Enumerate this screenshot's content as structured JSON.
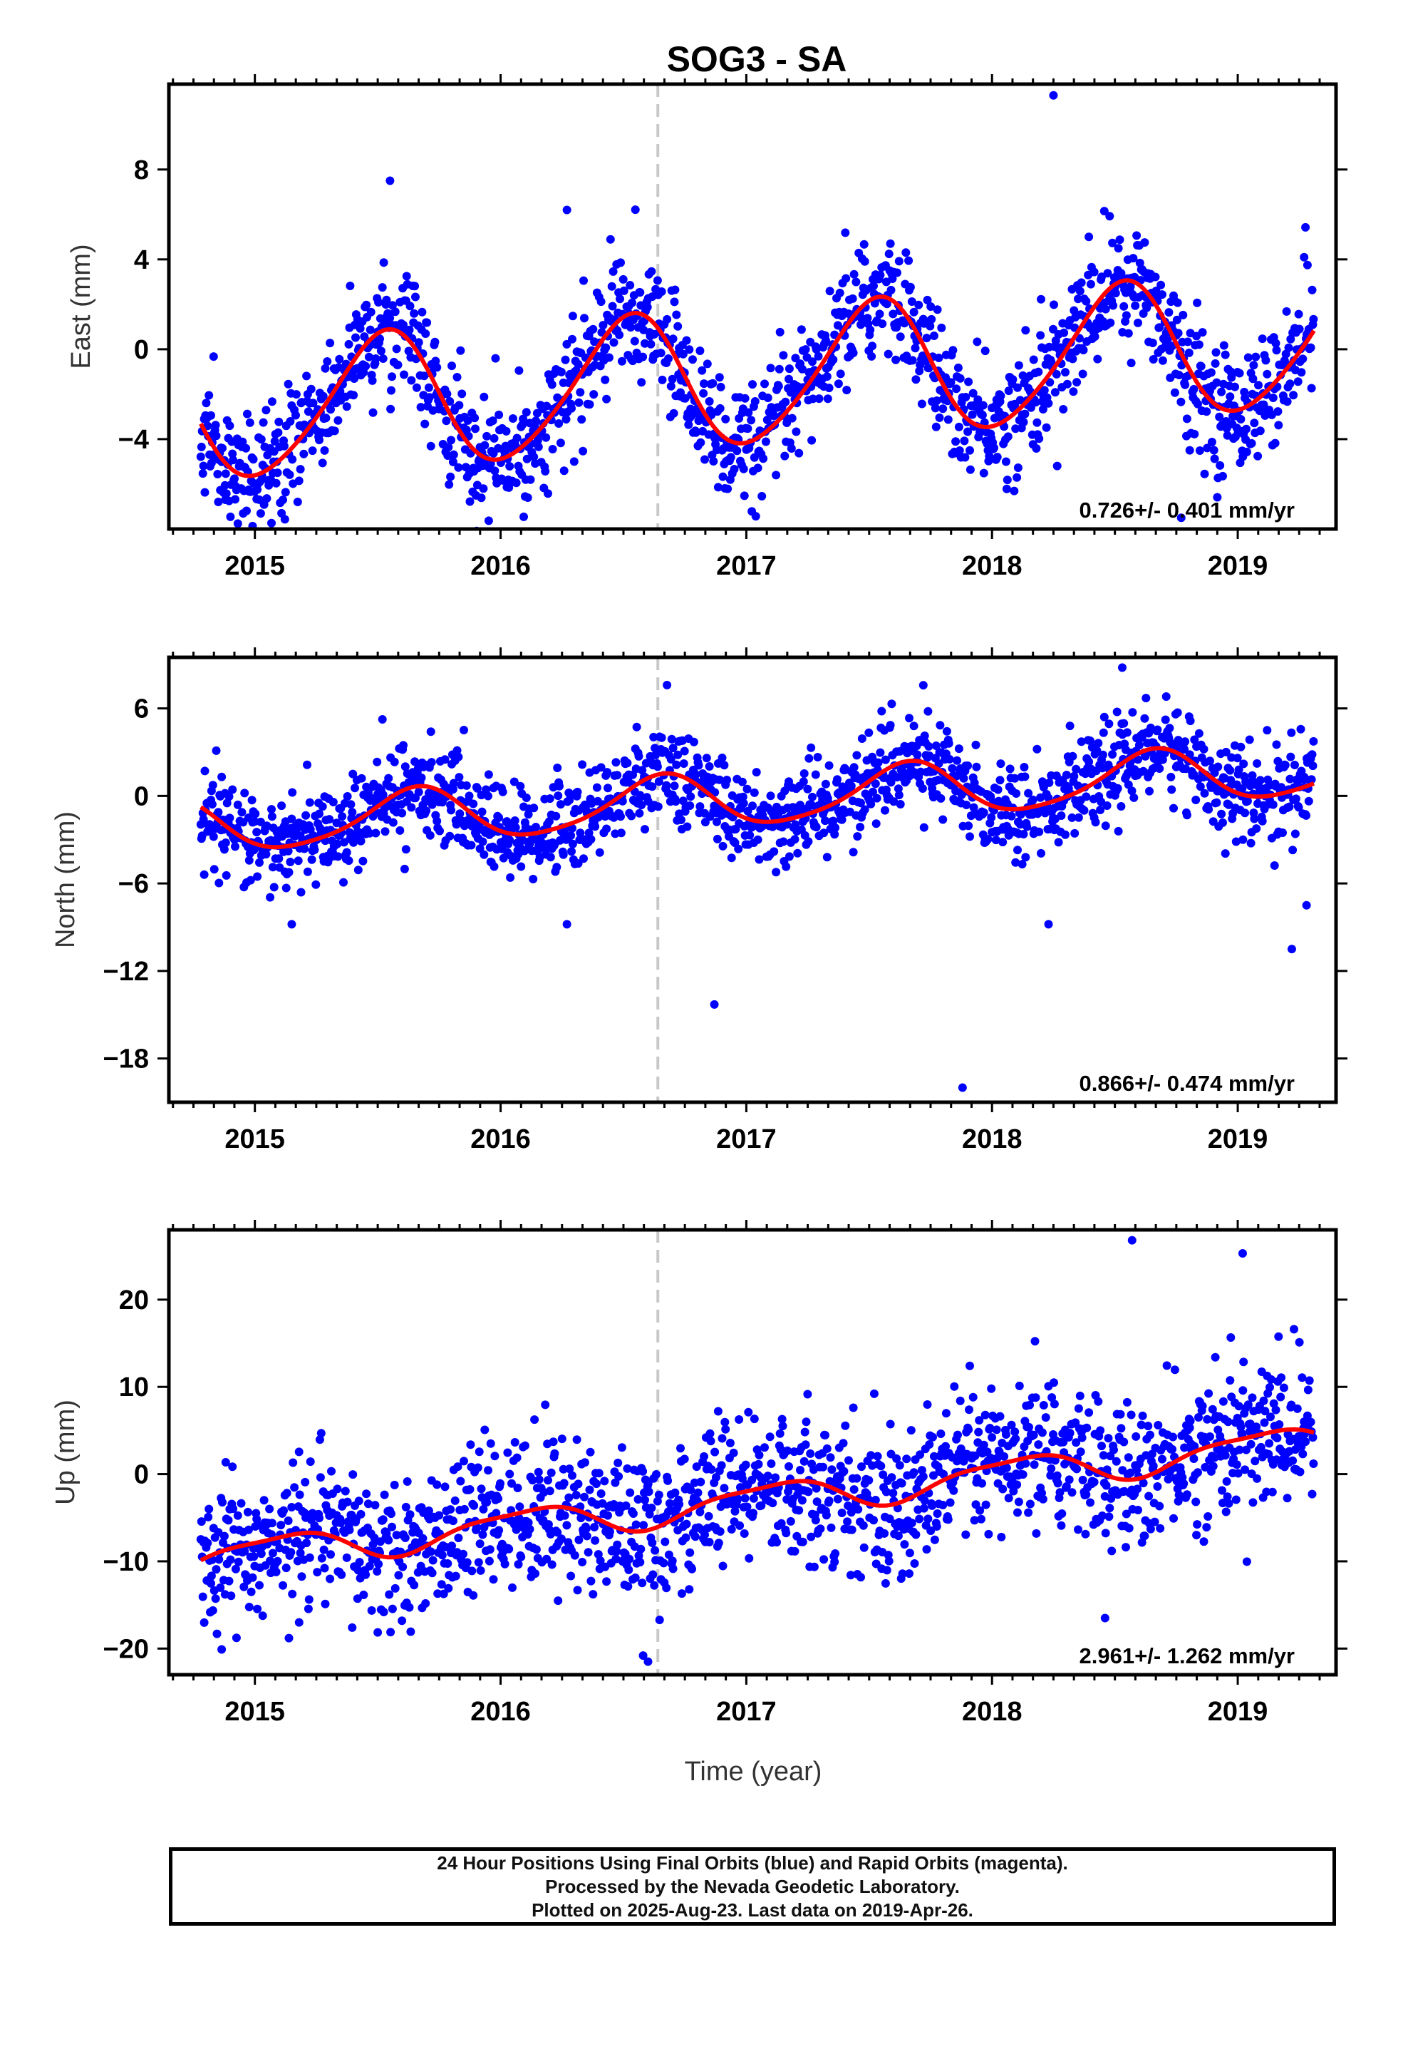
{
  "title": "SOG3 - SA",
  "colors": {
    "final_orbits": "#0000ff",
    "fit": "#ff0000",
    "offset_marker": "#c8c8c8",
    "frame": "#000000"
  },
  "xaxis": {
    "label": "Time (year)",
    "range": [
      2014.65,
      2019.4
    ],
    "ticks": [
      2015,
      2016,
      2017,
      2018,
      2019
    ],
    "tick_labels": [
      "2015",
      "2016",
      "2017",
      "2018",
      "2019"
    ]
  },
  "offset_epoch": 2016.64,
  "footer": {
    "line1": "24 Hour Positions Using Final Orbits (blue) and Rapid Orbits (magenta).",
    "line2": "Processed by the Nevada Geodetic Laboratory.",
    "line3": "Plotted on 2025-Aug-23. Last data on 2019-Apr-26."
  },
  "chart_data": [
    {
      "type": "scatter",
      "panel": "east",
      "ylabel": "East (mm)",
      "ylim": [
        -8,
        11.8
      ],
      "yticks": [
        -4,
        0,
        4,
        8
      ],
      "rate_label": "0.726+/- 0.401 mm/yr",
      "start": 2014.78,
      "end": 2019.31,
      "rate": 0.726,
      "intercept": -1.55,
      "annual": {
        "amp": 3.0,
        "peak": 0.52
      },
      "semiannual": {
        "amp": 0.35,
        "peak": 0.1
      },
      "noise_sd": 1.35,
      "series": [
        {
          "name": "Final Orbits",
          "x": [
            2014.78,
            2014.9,
            2015.1,
            2015.3,
            2015.5,
            2015.7,
            2015.88,
            2016.1,
            2016.3,
            2016.5,
            2016.7,
            2016.88,
            2017.1,
            2017.3,
            2017.5,
            2017.7,
            2017.88,
            2018.1,
            2018.3,
            2018.5,
            2018.7,
            2018.88,
            2019.1,
            2019.31
          ],
          "y": [
            -3.0,
            -3.6,
            -2.5,
            0.0,
            0.5,
            -0.8,
            -3.7,
            -1.8,
            0.3,
            1.2,
            -0.2,
            -2.3,
            -0.8,
            1.5,
            2.2,
            0.5,
            -1.6,
            -0.5,
            2.0,
            2.9,
            1.3,
            -1.0,
            0.4,
            3.2
          ]
        },
        {
          "name": "Fit",
          "x": [
            2014.78,
            2014.9,
            2015.1,
            2015.3,
            2015.5,
            2015.7,
            2015.88,
            2016.1,
            2016.3,
            2016.5,
            2016.7,
            2016.88,
            2017.1,
            2017.3,
            2017.5,
            2017.7,
            2017.88,
            2018.1,
            2018.3,
            2018.5,
            2018.7,
            2018.88,
            2019.1,
            2019.31
          ],
          "y": [
            -3.8,
            -4.2,
            -2.8,
            -0.2,
            0.4,
            -1.3,
            -3.5,
            -2.0,
            0.2,
            1.1,
            -0.5,
            -2.4,
            -1.0,
            1.2,
            2.2,
            0.6,
            -1.6,
            -0.4,
            1.9,
            3.0,
            1.4,
            -0.9,
            0.6,
            3.2
          ]
        },
        {
          "name": "Outliers",
          "x": [
            2015.55,
            2016.27,
            2018.25,
            2014.88,
            2015.93,
            2018.77
          ],
          "y": [
            7.5,
            6.2,
            11.3,
            -6.7,
            -6.2,
            -7.5
          ]
        }
      ]
    },
    {
      "type": "scatter",
      "panel": "north",
      "ylabel": "North (mm)",
      "ylim": [
        -21,
        9.5
      ],
      "yticks": [
        -18,
        -12,
        -6,
        0,
        6
      ],
      "rate_label": "0.866+/- 0.474 mm/yr",
      "start": 2014.78,
      "end": 2019.31,
      "rate": 0.866,
      "intercept": -0.55,
      "annual": {
        "amp": 1.8,
        "peak": 0.65
      },
      "semiannual": {
        "amp": 0.3,
        "peak": 0.2
      },
      "noise_sd": 1.6,
      "series": [
        {
          "name": "Final Orbits",
          "x": [
            2014.78,
            2015.0,
            2015.25,
            2015.5,
            2015.65,
            2016.0,
            2016.25,
            2016.6,
            2017.0,
            2017.25,
            2017.6,
            2018.0,
            2018.25,
            2018.65,
            2019.0,
            2019.31
          ],
          "y": [
            -0.5,
            -1.5,
            -3.1,
            -0.4,
            1.0,
            -0.2,
            -2.2,
            2.0,
            0.2,
            -1.6,
            2.3,
            1.0,
            -0.9,
            3.2,
            1.8,
            0.2
          ]
        },
        {
          "name": "Fit",
          "x": [
            2014.78,
            2015.0,
            2015.25,
            2015.5,
            2015.65,
            2016.0,
            2016.25,
            2016.6,
            2017.0,
            2017.25,
            2017.6,
            2018.0,
            2018.25,
            2018.65,
            2019.0,
            2019.31
          ],
          "y": [
            -0.6,
            -1.6,
            -3.2,
            -0.3,
            1.1,
            -0.3,
            -2.3,
            1.8,
            0.1,
            -1.7,
            2.4,
            1.1,
            -1.0,
            3.3,
            1.9,
            0.3
          ]
        },
        {
          "name": "Outliers",
          "x": [
            2016.87,
            2017.88,
            2019.22,
            2019.28,
            2018.53,
            2015.15,
            2016.27,
            2018.23
          ],
          "y": [
            -14.3,
            -20.0,
            -10.5,
            -7.5,
            8.8,
            -8.8,
            -8.8,
            -8.8
          ]
        }
      ]
    },
    {
      "type": "scatter",
      "panel": "up",
      "ylabel": "Up (mm)",
      "ylim": [
        -23,
        28
      ],
      "yticks": [
        -20,
        -10,
        0,
        10,
        20
      ],
      "rate_label": "2.961+/- 1.262 mm/yr",
      "start": 2014.78,
      "end": 2019.31,
      "rate": 2.961,
      "intercept": -4.1,
      "annual": {
        "amp": 1.8,
        "peak": 0.1
      },
      "semiannual": {
        "amp": 0.5,
        "peak": 0.3
      },
      "noise_sd": 4.2,
      "series": [
        {
          "name": "Final Orbits",
          "x": [
            2014.78,
            2015.0,
            2015.25,
            2015.5,
            2015.85,
            2016.25,
            2016.55,
            2016.9,
            2017.1,
            2017.3,
            2017.55,
            2017.85,
            2018.1,
            2018.3,
            2018.55,
            2018.85,
            2019.05,
            2019.31
          ],
          "y": [
            -4.0,
            -4.5,
            -2.3,
            -6.0,
            -1.0,
            1.0,
            -3.0,
            0.5,
            0.2,
            2.2,
            -1.2,
            3.3,
            2.8,
            5.1,
            1.5,
            6.5,
            5.8,
            8.0
          ]
        },
        {
          "name": "Fit",
          "x": [
            2014.78,
            2015.0,
            2015.25,
            2015.5,
            2015.85,
            2016.25,
            2016.55,
            2016.9,
            2017.1,
            2017.3,
            2017.55,
            2017.85,
            2018.1,
            2018.3,
            2018.55,
            2018.85,
            2019.05,
            2019.31
          ],
          "y": [
            -4.1,
            -4.6,
            -2.2,
            -5.9,
            -0.9,
            0.9,
            -2.9,
            0.4,
            0.1,
            2.3,
            -1.1,
            3.4,
            2.9,
            5.2,
            1.6,
            6.4,
            5.9,
            8.1
          ]
        },
        {
          "name": "Outliers",
          "x": [
            2016.6,
            2016.58,
            2018.57,
            2019.02,
            2018.46,
            2015.18
          ],
          "y": [
            -21.5,
            -20.8,
            26.8,
            25.3,
            -16.5,
            -17.0
          ]
        }
      ]
    }
  ]
}
